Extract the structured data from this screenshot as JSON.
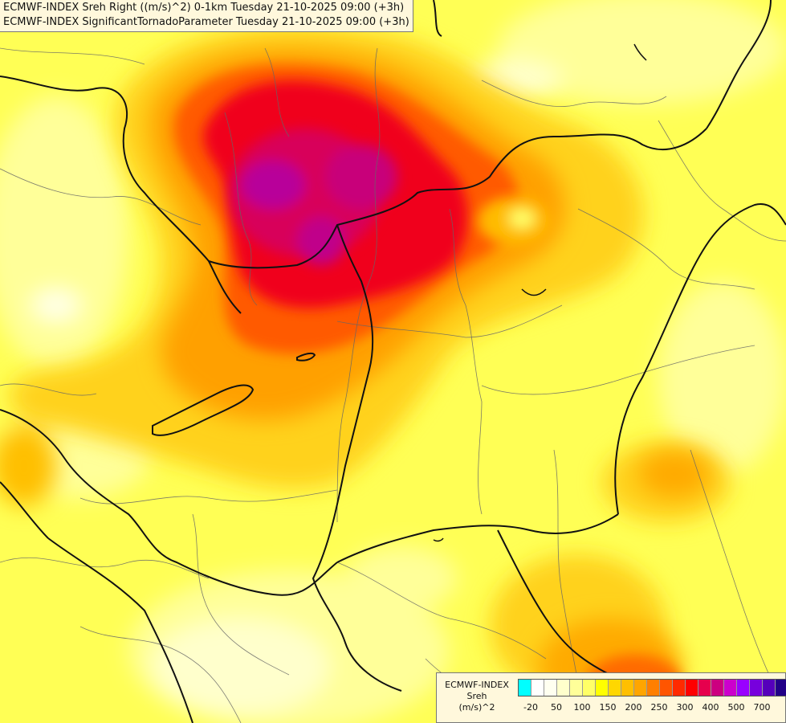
{
  "title": {
    "line1": "ECMWF-INDEX Sreh Right ((m/s)^2) 0-1km Tuesday 21-10-2025 09:00 (+3h)",
    "line2": "ECMWF-INDEX SignificantTornadoParameter Tuesday 21-10-2025 09:00 (+3h)"
  },
  "legend": {
    "model": "ECMWF-INDEX",
    "field": "Sreh",
    "unit": "(m/s)^2",
    "colors": [
      "#00ffff",
      "#ffffff",
      "#fffff0",
      "#ffffcc",
      "#ffff99",
      "#ffff66",
      "#ffff00",
      "#ffd700",
      "#ffbf00",
      "#ffa500",
      "#ff7f00",
      "#ff5500",
      "#ff2a00",
      "#ff0000",
      "#e6004d",
      "#cc0080",
      "#cc00cc",
      "#9900ff",
      "#7700dd",
      "#5500bb",
      "#220088"
    ],
    "ticks": [
      "-20",
      "50",
      "100",
      "150",
      "200",
      "250",
      "300",
      "400",
      "500",
      "700"
    ]
  },
  "map": {
    "background_color": "#ffff66"
  }
}
